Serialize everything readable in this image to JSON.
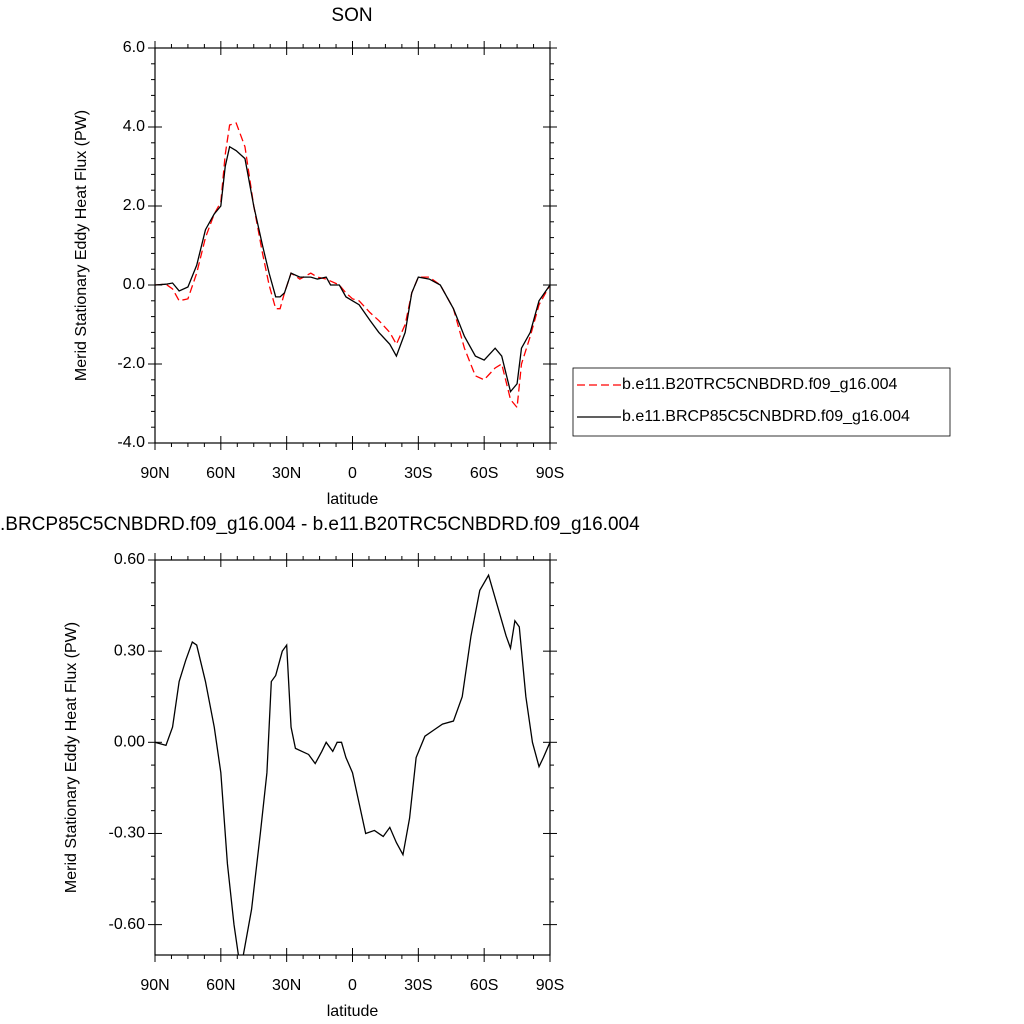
{
  "chart_data": [
    {
      "type": "line",
      "title": "SON",
      "x_label": "latitude",
      "y_label": "Merid Stationary Eddy Heat Flux (PW)",
      "x": [
        90,
        85,
        82,
        79,
        75,
        71,
        67,
        63,
        60,
        58,
        56,
        53,
        49,
        45,
        41,
        38,
        35,
        33,
        31,
        28,
        24,
        19,
        16,
        12,
        10,
        6,
        3,
        0,
        -3,
        -8,
        -12,
        -17,
        -20,
        -24,
        -27,
        -30,
        -35,
        -40,
        -46,
        -51,
        -56,
        -60,
        -65,
        -68,
        -72,
        -75,
        -77,
        -81,
        -85,
        -90
      ],
      "series": [
        {
          "name": "b.e11.B20TRC5CNBDRD.f09_g16.004",
          "color": "#ff0000",
          "line_style": "dashed",
          "values": [
            0,
            0.02,
            -0.1,
            -0.4,
            -0.35,
            0.3,
            1.2,
            1.8,
            2.1,
            3.3,
            4.05,
            4.1,
            3.5,
            2.0,
            0.8,
            0.0,
            -0.6,
            -0.6,
            -0.2,
            0.3,
            0.15,
            0.3,
            0.2,
            0.15,
            0.1,
            0.0,
            -0.2,
            -0.35,
            -0.4,
            -0.7,
            -0.9,
            -1.2,
            -1.5,
            -1.0,
            -0.2,
            0.2,
            0.2,
            0.0,
            -0.6,
            -1.6,
            -2.3,
            -2.4,
            -2.1,
            -2.0,
            -2.9,
            -3.1,
            -2.0,
            -1.3,
            -0.5,
            0
          ]
        },
        {
          "name": "b.e11.BRCP85C5CNBDRD.f09_g16.004",
          "color": "#000000",
          "line_style": "solid",
          "values": [
            0,
            0.02,
            0.05,
            -0.15,
            -0.05,
            0.5,
            1.4,
            1.8,
            2.0,
            3.0,
            3.5,
            3.4,
            3.2,
            2.0,
            1.0,
            0.3,
            -0.3,
            -0.3,
            -0.2,
            0.3,
            0.2,
            0.2,
            0.15,
            0.2,
            0.0,
            0.0,
            -0.3,
            -0.4,
            -0.5,
            -0.9,
            -1.2,
            -1.5,
            -1.8,
            -1.2,
            -0.2,
            0.2,
            0.15,
            0.0,
            -0.6,
            -1.3,
            -1.8,
            -1.9,
            -1.6,
            -1.8,
            -2.7,
            -2.5,
            -1.6,
            -1.2,
            -0.4,
            0
          ]
        }
      ],
      "xlim": [
        90,
        -90
      ],
      "xticks": [
        {
          "value": 90,
          "label": "90N"
        },
        {
          "value": 60,
          "label": "60N"
        },
        {
          "value": 30,
          "label": "30N"
        },
        0,
        {
          "value": -30,
          "label": "30S"
        },
        {
          "value": -60,
          "label": "60S"
        },
        {
          "value": -90,
          "label": "90S"
        }
      ],
      "ylim": [
        -4,
        6
      ],
      "yticks": [
        {
          "value": -4,
          "label": "-4.0"
        },
        {
          "value": -2,
          "label": "-2.0"
        },
        {
          "value": 0,
          "label": "0.0"
        },
        {
          "value": 2,
          "label": "2.0"
        },
        {
          "value": 4,
          "label": "4.0"
        },
        {
          "value": 6,
          "label": "6.0"
        }
      ],
      "legend": "outside-right"
    },
    {
      "type": "line",
      "title": ".BRCP85C5CNBDRD.f09_g16.004 - b.e11.B20TRC5CNBDRD.f09_g16.004",
      "x_label": "latitude",
      "y_label": "Merid Stationary Eddy Heat Flux (PW)",
      "x": [
        90,
        85,
        82,
        79,
        76,
        73,
        71,
        67,
        63,
        60,
        57,
        54,
        51,
        49,
        46,
        42,
        39,
        37,
        35,
        32,
        30,
        28,
        26,
        23,
        20,
        17,
        14,
        12,
        9,
        7,
        5,
        3,
        0,
        -3,
        -6,
        -10,
        -14,
        -17,
        -20,
        -23,
        -26,
        -29,
        -33,
        -37,
        -41,
        -46,
        -50,
        -54,
        -58,
        -62,
        -66,
        -70,
        -72,
        -74,
        -76,
        -79,
        -82,
        -85,
        -87,
        -90
      ],
      "series": [
        {
          "color": "#000000",
          "line_style": "solid",
          "values": [
            0,
            -0.01,
            0.05,
            0.2,
            0.27,
            0.33,
            0.32,
            0.2,
            0.05,
            -0.1,
            -0.4,
            -0.6,
            -0.75,
            -0.67,
            -0.55,
            -0.3,
            -0.1,
            0.2,
            0.22,
            0.3,
            0.32,
            0.05,
            -0.02,
            -0.03,
            -0.04,
            -0.07,
            -0.03,
            0.0,
            -0.03,
            0.0,
            0.0,
            -0.05,
            -0.1,
            -0.2,
            -0.3,
            -0.29,
            -0.31,
            -0.28,
            -0.33,
            -0.37,
            -0.25,
            -0.05,
            0.02,
            0.04,
            0.06,
            0.07,
            0.15,
            0.35,
            0.5,
            0.55,
            0.45,
            0.35,
            0.31,
            0.4,
            0.38,
            0.15,
            0.0,
            -0.08,
            -0.05,
            0
          ]
        }
      ],
      "xlim": [
        90,
        -90
      ],
      "xticks": [
        {
          "value": 90,
          "label": "90N"
        },
        {
          "value": 60,
          "label": "60N"
        },
        {
          "value": 30,
          "label": "30N"
        },
        0,
        {
          "value": -30,
          "label": "30S"
        },
        {
          "value": -60,
          "label": "60S"
        },
        {
          "value": -90,
          "label": "90S"
        }
      ],
      "ylim": [
        -0.7,
        0.6
      ],
      "yticks": [
        {
          "value": -0.6,
          "label": "-0.60"
        },
        {
          "value": -0.3,
          "label": "-0.30"
        },
        {
          "value": 0,
          "label": "0.00"
        },
        {
          "value": 0.3,
          "label": "0.30"
        },
        {
          "value": 0.6,
          "label": "0.60"
        }
      ]
    }
  ]
}
